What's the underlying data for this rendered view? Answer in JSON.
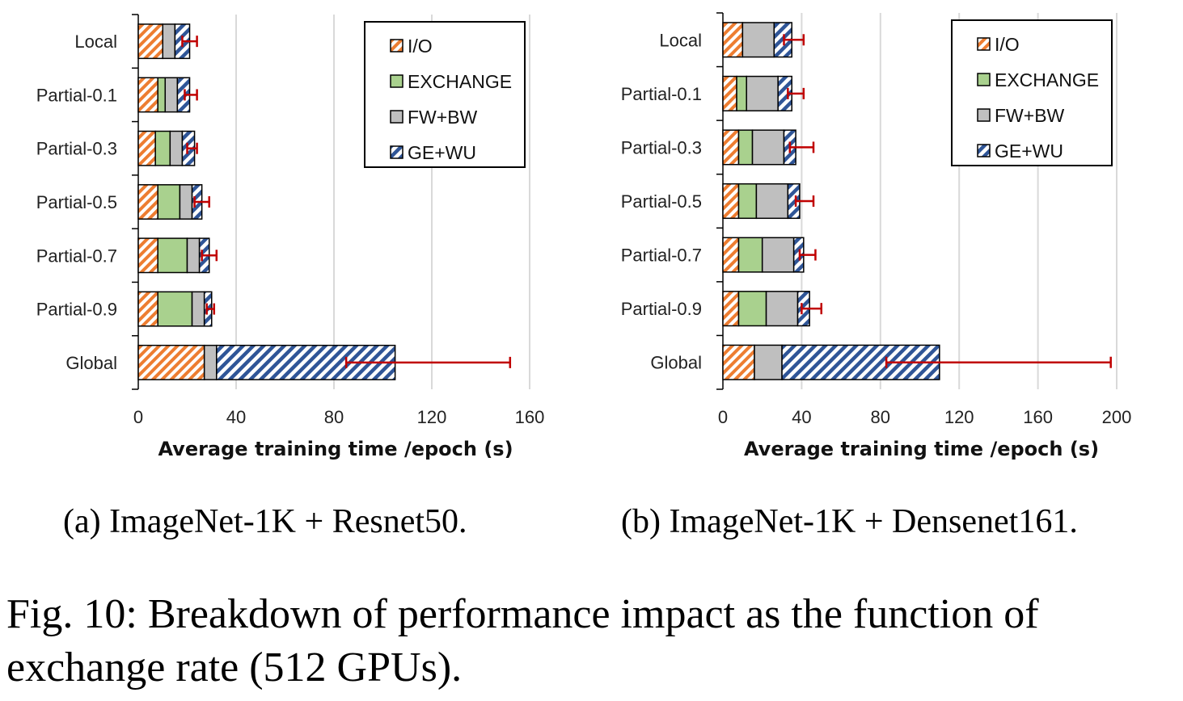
{
  "colors": {
    "io": "#ED7D31",
    "exchange": "#A9D18E",
    "fwbw": "#BFBFBF",
    "gewu": "#2F5597",
    "error_bar": "#C00000",
    "grid": "#D9D9D9"
  },
  "legend": {
    "items": [
      "I/O",
      "EXCHANGE",
      "FW+BW",
      "GE+WU"
    ],
    "placement": "top-right"
  },
  "captions": {
    "a": "(a)  ImageNet-1K + Resnet50.",
    "b": "(b)  ImageNet-1K + Densenet161.",
    "figure": "Fig. 10: Breakdown of performance impact as the function of exchange rate (512 GPUs)."
  },
  "chart_data": [
    {
      "type": "bar",
      "orientation": "horizontal",
      "stacked": true,
      "title": "",
      "xlabel": "Average training time /epoch (s)",
      "ylabel": "",
      "xlim": [
        0,
        160
      ],
      "xticks": [
        0,
        40,
        80,
        120,
        160
      ],
      "grid": true,
      "categories": [
        "Local",
        "Partial-0.1",
        "Partial-0.3",
        "Partial-0.5",
        "Partial-0.7",
        "Partial-0.9",
        "Global"
      ],
      "series": [
        {
          "name": "I/O",
          "values": [
            10,
            8,
            7,
            8,
            8,
            8,
            27
          ]
        },
        {
          "name": "EXCHANGE",
          "values": [
            0,
            3,
            6,
            9,
            12,
            14,
            0
          ]
        },
        {
          "name": "FW+BW",
          "values": [
            5,
            5,
            5,
            5,
            5,
            5,
            5
          ]
        },
        {
          "name": "GE+WU",
          "values": [
            6,
            5,
            5,
            4,
            4,
            3,
            73
          ]
        }
      ],
      "error_bars": [
        {
          "low": 18,
          "high": 24
        },
        {
          "low": 19,
          "high": 24
        },
        {
          "low": 20,
          "high": 24
        },
        {
          "low": 23,
          "high": 29
        },
        {
          "low": 26,
          "high": 32
        },
        {
          "low": 28,
          "high": 31
        },
        {
          "low": 85,
          "high": 152
        }
      ]
    },
    {
      "type": "bar",
      "orientation": "horizontal",
      "stacked": true,
      "title": "",
      "xlabel": "Average training time /epoch (s)",
      "ylabel": "",
      "xlim": [
        0,
        200
      ],
      "xticks": [
        0,
        40,
        80,
        120,
        160,
        200
      ],
      "grid": true,
      "categories": [
        "Local",
        "Partial-0.1",
        "Partial-0.3",
        "Partial-0.5",
        "Partial-0.7",
        "Partial-0.9",
        "Global"
      ],
      "series": [
        {
          "name": "I/O",
          "values": [
            10,
            7,
            8,
            8,
            8,
            8,
            16
          ]
        },
        {
          "name": "EXCHANGE",
          "values": [
            0,
            5,
            7,
            9,
            12,
            14,
            0
          ]
        },
        {
          "name": "FW+BW",
          "values": [
            16,
            16,
            16,
            16,
            16,
            16,
            14
          ]
        },
        {
          "name": "GE+WU",
          "values": [
            9,
            7,
            6,
            6,
            5,
            6,
            80
          ]
        }
      ],
      "error_bars": [
        {
          "low": 31,
          "high": 41
        },
        {
          "low": 33,
          "high": 41
        },
        {
          "low": 34,
          "high": 46
        },
        {
          "low": 37,
          "high": 46
        },
        {
          "low": 39,
          "high": 47
        },
        {
          "low": 40,
          "high": 50
        },
        {
          "low": 83,
          "high": 197
        }
      ]
    }
  ]
}
